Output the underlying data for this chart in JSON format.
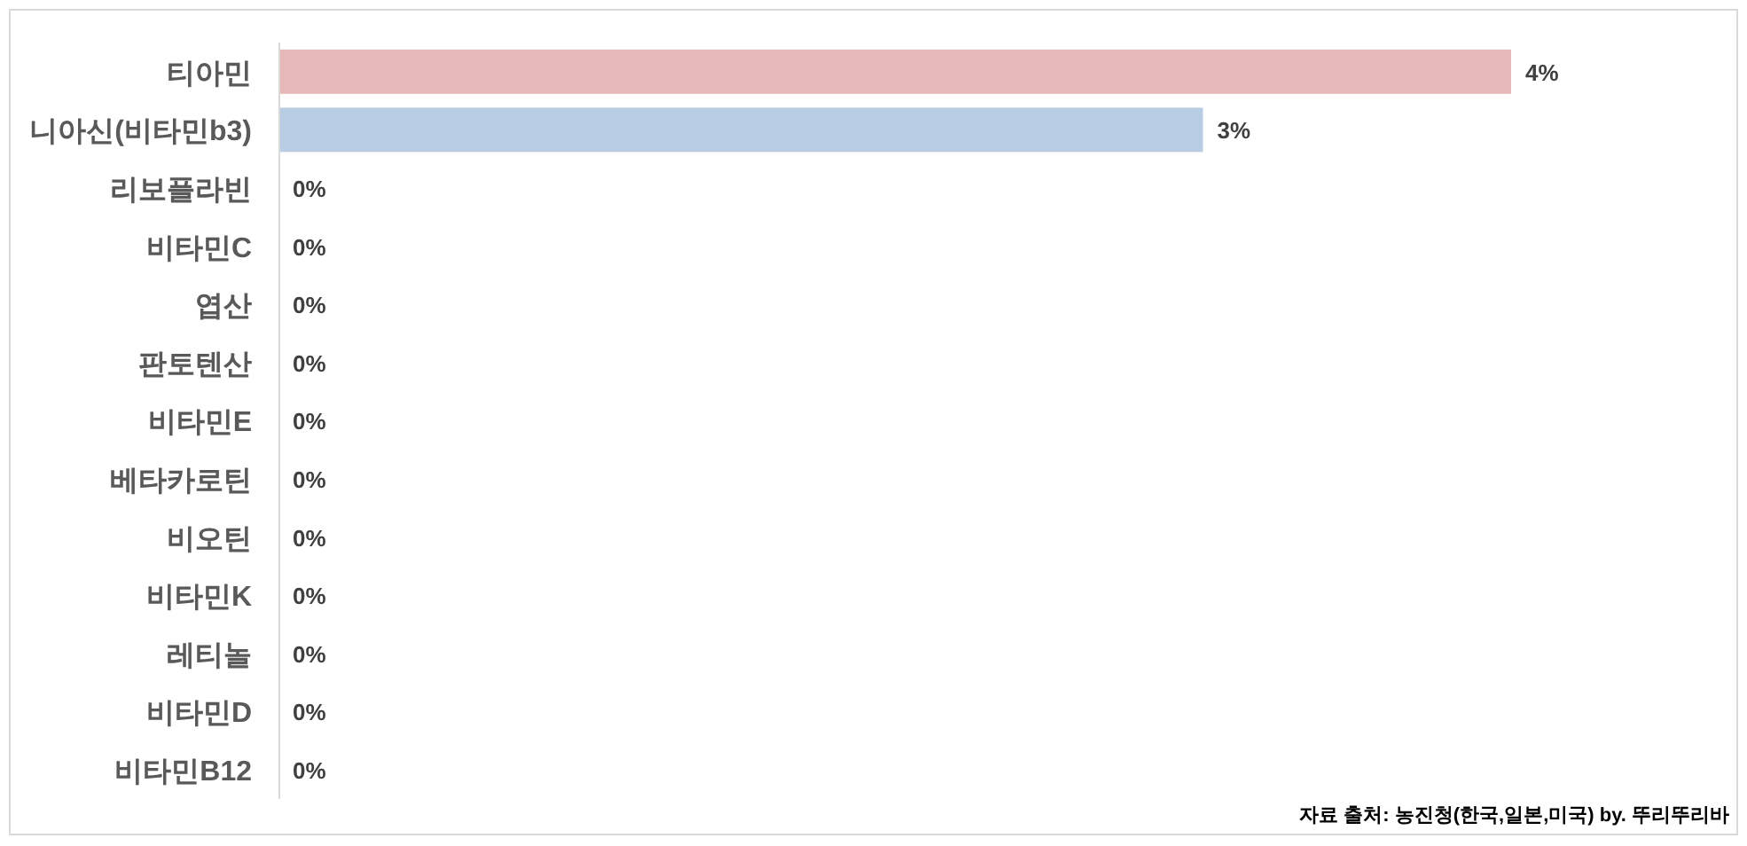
{
  "chart_data": {
    "type": "bar",
    "orientation": "horizontal",
    "categories": [
      "티아민",
      "니아신(비타민b3)",
      "리보플라빈",
      "비타민C",
      "엽산",
      "판토텐산",
      "비타민E",
      "베타카로틴",
      "비오틴",
      "비타민K",
      "레티놀",
      "비타민D",
      "비타민B12"
    ],
    "values": [
      4,
      3,
      0,
      0,
      0,
      0,
      0,
      0,
      0,
      0,
      0,
      0,
      0
    ],
    "colors": [
      "#e6b8b7",
      "#b8cce4",
      "#b8cce4",
      "#b8cce4",
      "#b8cce4",
      "#b8cce4",
      "#b8cce4",
      "#b8cce4",
      "#b8cce4",
      "#b8cce4",
      "#b8cce4",
      "#b8cce4",
      "#b8cce4"
    ],
    "value_labels": [
      "4%",
      "3%",
      "0%",
      "0%",
      "0%",
      "0%",
      "0%",
      "0%",
      "0%",
      "0%",
      "0%",
      "0%",
      "0%"
    ],
    "annotations": [
      "자료 출처: 농진청(한국,일본,미국) by. 뚜리뚜리바"
    ]
  }
}
